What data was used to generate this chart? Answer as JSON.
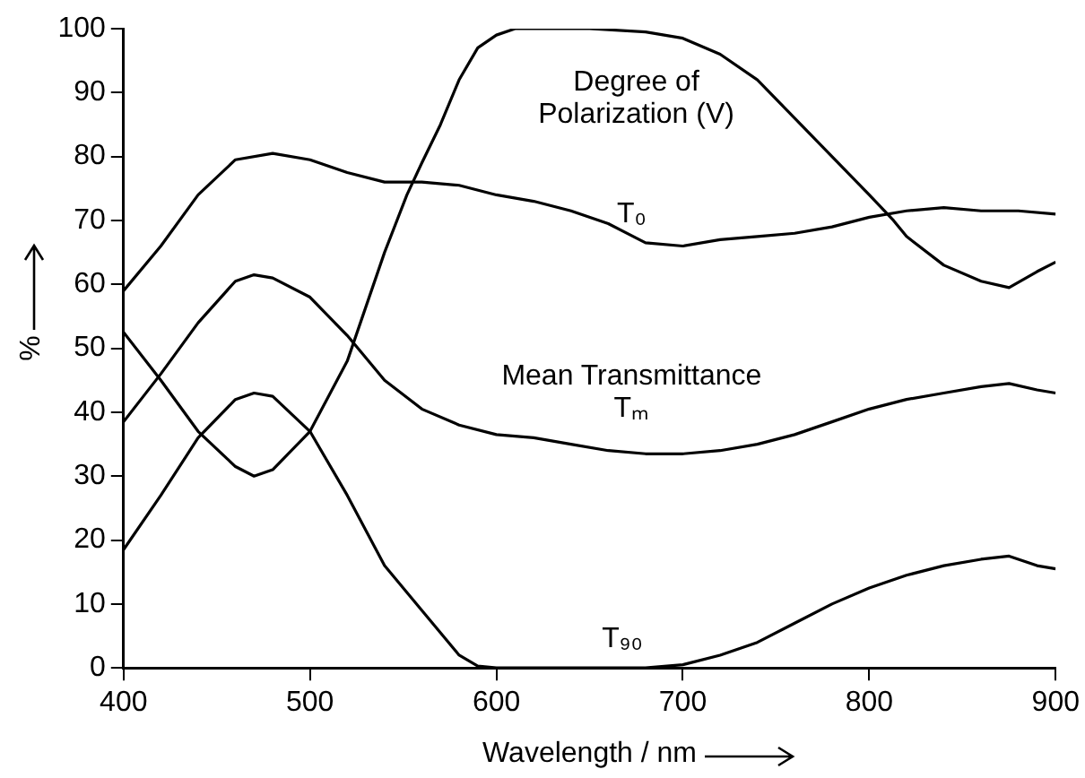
{
  "chart_data": {
    "type": "line",
    "xlabel": "Wavelength / nm",
    "ylabel": "%",
    "xlim": [
      400,
      900
    ],
    "xticks": [
      400,
      500,
      600,
      700,
      800,
      900
    ],
    "ylim": [
      0,
      100
    ],
    "yticks": [
      0,
      10,
      20,
      30,
      40,
      50,
      60,
      70,
      80,
      90,
      100
    ],
    "grid": false,
    "legend": false,
    "marker": "none",
    "line_style": "solid",
    "series": [
      {
        "color": "#000000",
        "x": [
          400,
          420,
          440,
          460,
          480,
          500,
          520,
          540,
          560,
          580,
          600,
          620,
          640,
          660,
          680,
          700,
          720,
          740,
          760,
          780,
          800,
          820,
          840,
          860,
          880,
          900
        ],
        "values": [
          59,
          66,
          74,
          79.5,
          80.5,
          79.5,
          77.5,
          76,
          76,
          75.5,
          74,
          73,
          71.5,
          69.5,
          66.5,
          66,
          67,
          67.5,
          68,
          69,
          70.5,
          71.5,
          72,
          71.5,
          71.5,
          71
        ]
      },
      {
        "color": "#000000",
        "x": [
          400,
          420,
          440,
          460,
          470,
          480,
          500,
          520,
          540,
          560,
          580,
          600,
          620,
          640,
          660,
          680,
          700,
          720,
          740,
          760,
          780,
          800,
          820,
          840,
          860,
          875,
          890,
          900
        ],
        "values": [
          38.5,
          46,
          54,
          60.5,
          61.5,
          61,
          58,
          52,
          45,
          40.5,
          38,
          36.5,
          36,
          35,
          34,
          33.5,
          33.5,
          34,
          35,
          36.5,
          38.5,
          40.5,
          42,
          43,
          44,
          44.5,
          43.5,
          43
        ]
      },
      {
        "color": "#000000",
        "x": [
          400,
          420,
          440,
          460,
          470,
          480,
          500,
          520,
          540,
          560,
          580,
          590,
          600,
          650,
          680,
          700,
          720,
          740,
          760,
          780,
          800,
          820,
          840,
          860,
          875,
          890,
          900
        ],
        "values": [
          18.5,
          27,
          36,
          42,
          43,
          42.5,
          37,
          27,
          16,
          9,
          2,
          0.3,
          0,
          0,
          0,
          0.5,
          2,
          4,
          7,
          10,
          12.5,
          14.5,
          16,
          17,
          17.5,
          16,
          15.5
        ]
      },
      {
        "color": "#000000",
        "x": [
          400,
          420,
          440,
          460,
          470,
          480,
          500,
          520,
          540,
          552,
          560,
          570,
          580,
          590,
          600,
          610,
          650,
          680,
          700,
          720,
          740,
          760,
          780,
          800,
          813,
          820,
          840,
          860,
          875,
          890,
          900
        ],
        "values": [
          52.5,
          45,
          37,
          31.5,
          30,
          31,
          37,
          48,
          65,
          74,
          79,
          85,
          92,
          97,
          99,
          100,
          100,
          99.5,
          98.5,
          96,
          92,
          86,
          80,
          74,
          70,
          67.5,
          63,
          60.5,
          59.5,
          62,
          63.5
        ]
      }
    ],
    "annotations": [
      "Degree of\nPolarization (V)",
      "T₀",
      "Mean Transmittance\nTₘ",
      "T₉₀"
    ]
  }
}
